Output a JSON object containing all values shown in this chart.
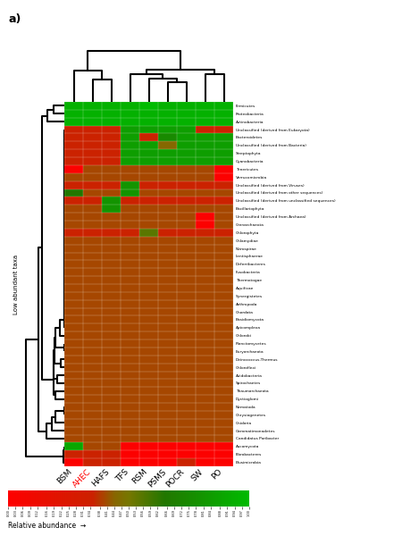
{
  "title": "a)",
  "col_labels": [
    "SW",
    "PO",
    "AHEC",
    "HAFS",
    "TFS",
    "PSMS",
    "BSM",
    "RSM",
    "POCR"
  ],
  "col_label_colors": [
    "black",
    "black",
    "red",
    "black",
    "black",
    "black",
    "black",
    "black",
    "black"
  ],
  "row_labels": [
    "Proteobacteria",
    "Firmicutes",
    "Actinobacteria",
    "Bacteroidetes",
    "Chlorophyta",
    "Unclassified (derived from Viruses)",
    "Unclassified (derived from unclassified sequences)",
    "Streptophyta",
    "Unclassified (derived from Bacteria)",
    "Cyanobacteria",
    "Unclassified (derived from Eukaryota)",
    "Fibrobacteres",
    "Elusimicrobia",
    "Gemmatimonadetes",
    "Candidatus Poribacter",
    "Cnidaria",
    "Tenericutes",
    "Chrysiogenetes",
    "Nematoda",
    "Dyctioglomi",
    "Thaumarchaeota",
    "Unclassified (derived from Archaea)",
    "Spirochaetes",
    "Acidobacteria",
    "Chloroflexi",
    "Deinococcus-Thermus",
    "Verrucomicrobia",
    "Euryarchaeota",
    "Planctomycetes",
    "Chlorobi",
    "Apicomplexa",
    "Unclassified (derived from other sequences)",
    "Basidiomycota",
    "Chordata",
    "Arthropoda",
    "Crenarchaeota",
    "Synergistetes",
    "Aquificae",
    "Thermotogae",
    "Fusobacteria",
    "Deferribacteres",
    "Lentisphaerae",
    "Bacillariophyta",
    "Nitrospirae",
    "Chlamydiae",
    "Ascomycota"
  ],
  "colorbar_values": [
    0.0,
    0.03,
    0.06,
    0.09,
    0.12,
    0.16,
    0.19,
    0.22,
    0.25,
    0.28,
    0.31,
    0.34,
    0.38,
    0.41,
    0.44,
    0.47,
    0.5,
    0.53,
    0.56,
    0.59,
    0.62,
    0.66,
    0.69,
    0.72,
    0.75,
    0.78,
    0.81,
    0.84,
    0.88,
    0.91,
    0.94,
    0.97,
    1.0
  ],
  "colorbar_label": "Relative abundance",
  "left_label": "Low abundant taxa",
  "heatmap_data": [
    [
      0.95,
      0.95,
      0.95,
      0.95,
      0.95,
      0.95,
      0.95,
      0.95,
      0.95
    ],
    [
      0.95,
      0.95,
      0.95,
      0.95,
      0.95,
      0.95,
      0.95,
      1.0,
      0.95
    ],
    [
      0.95,
      0.95,
      0.95,
      0.95,
      0.95,
      0.95,
      0.95,
      0.95,
      0.95
    ],
    [
      0.85,
      0.85,
      0.35,
      0.35,
      0.85,
      0.75,
      0.35,
      0.35,
      0.85
    ],
    [
      0.35,
      0.35,
      0.35,
      0.35,
      0.35,
      0.35,
      0.35,
      0.55,
      0.35
    ],
    [
      0.35,
      0.35,
      0.35,
      0.35,
      0.8,
      0.35,
      0.35,
      0.35,
      0.35
    ],
    [
      0.35,
      0.35,
      0.35,
      0.8,
      0.35,
      0.35,
      0.35,
      0.35,
      0.35
    ],
    [
      0.85,
      0.85,
      0.35,
      0.35,
      0.85,
      0.85,
      0.35,
      0.85,
      0.85
    ],
    [
      0.85,
      0.85,
      0.35,
      0.35,
      0.85,
      0.45,
      0.35,
      0.85,
      0.85
    ],
    [
      0.85,
      0.85,
      0.35,
      0.35,
      0.85,
      0.85,
      0.35,
      0.85,
      0.85
    ],
    [
      0.35,
      0.35,
      0.35,
      0.35,
      0.85,
      0.85,
      0.35,
      0.85,
      0.85
    ],
    [
      0.02,
      0.02,
      0.35,
      0.35,
      0.02,
      0.02,
      0.35,
      0.02,
      0.02
    ],
    [
      0.02,
      0.02,
      0.35,
      0.35,
      0.02,
      0.02,
      0.02,
      0.02,
      0.35
    ],
    [
      0.4,
      0.4,
      0.4,
      0.4,
      0.4,
      0.4,
      0.4,
      0.4,
      0.4
    ],
    [
      0.4,
      0.4,
      0.4,
      0.4,
      0.4,
      0.4,
      0.4,
      0.4,
      0.4
    ],
    [
      0.4,
      0.4,
      0.4,
      0.4,
      0.4,
      0.4,
      0.4,
      0.4,
      0.4
    ],
    [
      0.4,
      0.02,
      0.4,
      0.4,
      0.4,
      0.4,
      0.02,
      0.4,
      0.4
    ],
    [
      0.4,
      0.4,
      0.4,
      0.4,
      0.4,
      0.4,
      0.4,
      0.4,
      0.4
    ],
    [
      0.4,
      0.4,
      0.4,
      0.4,
      0.4,
      0.4,
      0.4,
      0.4,
      0.4
    ],
    [
      0.4,
      0.4,
      0.4,
      0.4,
      0.4,
      0.4,
      0.4,
      0.4,
      0.4
    ],
    [
      0.4,
      0.4,
      0.4,
      0.4,
      0.4,
      0.4,
      0.4,
      0.4,
      0.4
    ],
    [
      0.02,
      0.4,
      0.4,
      0.4,
      0.4,
      0.4,
      0.4,
      0.4,
      0.4
    ],
    [
      0.4,
      0.4,
      0.4,
      0.4,
      0.4,
      0.4,
      0.4,
      0.4,
      0.4
    ],
    [
      0.4,
      0.4,
      0.4,
      0.4,
      0.4,
      0.4,
      0.4,
      0.4,
      0.4
    ],
    [
      0.4,
      0.4,
      0.4,
      0.4,
      0.4,
      0.4,
      0.4,
      0.4,
      0.4
    ],
    [
      0.4,
      0.4,
      0.4,
      0.4,
      0.4,
      0.4,
      0.4,
      0.4,
      0.4
    ],
    [
      0.4,
      0.02,
      0.4,
      0.4,
      0.4,
      0.4,
      0.4,
      0.4,
      0.4
    ],
    [
      0.4,
      0.4,
      0.4,
      0.4,
      0.4,
      0.4,
      0.4,
      0.4,
      0.4
    ],
    [
      0.4,
      0.4,
      0.4,
      0.4,
      0.4,
      0.4,
      0.4,
      0.4,
      0.4
    ],
    [
      0.4,
      0.4,
      0.4,
      0.4,
      0.4,
      0.4,
      0.4,
      0.4,
      0.4
    ],
    [
      0.4,
      0.4,
      0.4,
      0.4,
      0.4,
      0.4,
      0.4,
      0.4,
      0.4
    ],
    [
      0.4,
      0.4,
      0.4,
      0.4,
      0.8,
      0.4,
      0.65,
      0.4,
      0.4
    ],
    [
      0.4,
      0.4,
      0.4,
      0.4,
      0.4,
      0.4,
      0.4,
      0.4,
      0.4
    ],
    [
      0.4,
      0.4,
      0.4,
      0.4,
      0.4,
      0.4,
      0.4,
      0.4,
      0.4
    ],
    [
      0.4,
      0.4,
      0.4,
      0.4,
      0.4,
      0.4,
      0.4,
      0.4,
      0.4
    ],
    [
      0.02,
      0.4,
      0.4,
      0.4,
      0.4,
      0.4,
      0.4,
      0.4,
      0.4
    ],
    [
      0.4,
      0.4,
      0.4,
      0.4,
      0.4,
      0.4,
      0.4,
      0.4,
      0.4
    ],
    [
      0.4,
      0.4,
      0.4,
      0.4,
      0.4,
      0.4,
      0.4,
      0.4,
      0.4
    ],
    [
      0.4,
      0.4,
      0.4,
      0.4,
      0.4,
      0.4,
      0.4,
      0.4,
      0.4
    ],
    [
      0.4,
      0.4,
      0.4,
      0.4,
      0.4,
      0.4,
      0.4,
      0.4,
      0.4
    ],
    [
      0.4,
      0.4,
      0.4,
      0.4,
      0.4,
      0.4,
      0.4,
      0.4,
      0.4
    ],
    [
      0.4,
      0.4,
      0.4,
      0.4,
      0.4,
      0.4,
      0.4,
      0.4,
      0.4
    ],
    [
      0.4,
      0.4,
      0.4,
      0.8,
      0.4,
      0.4,
      0.4,
      0.4,
      0.4
    ],
    [
      0.4,
      0.4,
      0.4,
      0.4,
      0.4,
      0.4,
      0.4,
      0.4,
      0.4
    ],
    [
      0.4,
      0.4,
      0.4,
      0.4,
      0.4,
      0.4,
      0.4,
      0.4,
      0.4
    ],
    [
      0.02,
      0.02,
      0.4,
      0.4,
      0.02,
      0.02,
      0.9,
      0.02,
      0.02
    ]
  ]
}
